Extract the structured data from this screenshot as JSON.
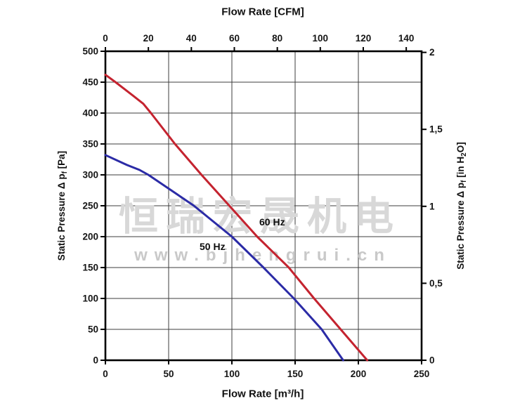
{
  "watermark": {
    "company_cjk": "恒瑞宏晟机电",
    "website": "www.bjhengrui.cn"
  },
  "chart_data": {
    "type": "line",
    "top_axis": {
      "title": "Flow Rate [CFM]",
      "unit": "CFM",
      "ticks": [
        0,
        20,
        40,
        60,
        80,
        100,
        120,
        140
      ],
      "cfm_per_m3h": 0.5886
    },
    "bottom_axis": {
      "title": "Flow Rate [m³/h]",
      "unit": "m³/h",
      "ticks": [
        0,
        50,
        100,
        150,
        200,
        250
      ],
      "range": [
        0,
        250
      ]
    },
    "left_axis": {
      "title_segments": [
        {
          "t": "Static Pressure Δ p"
        },
        {
          "t": "f",
          "sub": true
        },
        {
          "t": " [Pa]"
        }
      ],
      "unit": "Pa",
      "ticks": [
        0,
        50,
        100,
        150,
        200,
        250,
        300,
        350,
        400,
        450,
        500
      ],
      "range": [
        0,
        500
      ]
    },
    "right_axis": {
      "title_segments": [
        {
          "t": "Static Pressure Δ p"
        },
        {
          "t": "f",
          "sub": true
        },
        {
          "t": " [in H"
        },
        {
          "t": "2",
          "sub": true
        },
        {
          "t": "O]"
        }
      ],
      "unit": "in H2O",
      "ticks": [
        0,
        0.5,
        1,
        1.5,
        2
      ],
      "tick_labels": [
        "0",
        "0,5",
        "1",
        "1,5",
        "2"
      ],
      "pa_per_in_h2o": 249.09
    },
    "grid": true,
    "legend_position": "inline-curve-labels",
    "series": [
      {
        "name": "60 Hz",
        "color": "#c4232f",
        "points_m3h_pa": [
          [
            0,
            462
          ],
          [
            8,
            450
          ],
          [
            22,
            428
          ],
          [
            30,
            415
          ],
          [
            36,
            400
          ],
          [
            55,
            350
          ],
          [
            76,
            300
          ],
          [
            98,
            250
          ],
          [
            120,
            200
          ],
          [
            145,
            150
          ],
          [
            165,
            100
          ],
          [
            186,
            50
          ],
          [
            207,
            0
          ]
        ]
      },
      {
        "name": "50 Hz",
        "color": "#2b2ba6",
        "points_m3h_pa": [
          [
            0,
            332
          ],
          [
            17,
            316
          ],
          [
            27,
            308
          ],
          [
            34,
            300
          ],
          [
            70,
            250
          ],
          [
            100,
            200
          ],
          [
            125,
            150
          ],
          [
            149,
            100
          ],
          [
            171,
            50
          ],
          [
            188,
            0
          ]
        ]
      }
    ]
  }
}
